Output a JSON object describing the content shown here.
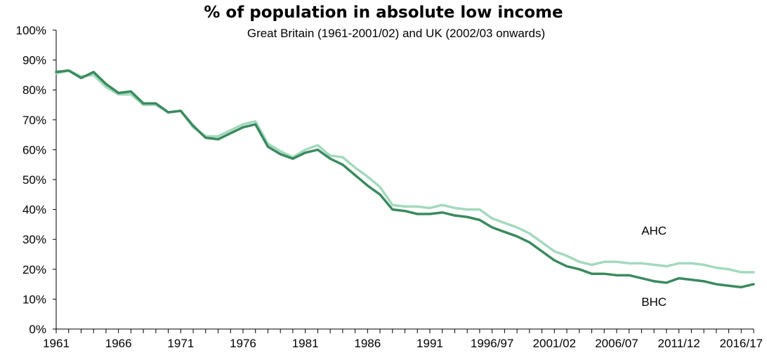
{
  "chart_data": {
    "type": "line",
    "title": "% of population in absolute low income",
    "subtitle": "Great Britain (1961-2001/02) and UK (2002/03 onwards)",
    "xlabel": "",
    "ylabel": "",
    "ylim": [
      0,
      100
    ],
    "y_ticks": [
      "0%",
      "10%",
      "20%",
      "30%",
      "40%",
      "50%",
      "60%",
      "70%",
      "80%",
      "90%",
      "100%"
    ],
    "x_tick_labels": [
      "1961",
      "1966",
      "1971",
      "1976",
      "1981",
      "1986",
      "1991",
      "1996/97",
      "2001/02",
      "2006/07",
      "2011/12",
      "2016/17"
    ],
    "x": [
      "1961",
      "1962",
      "1963",
      "1964",
      "1965",
      "1966",
      "1967",
      "1968",
      "1969",
      "1970",
      "1971",
      "1972",
      "1973",
      "1974",
      "1975",
      "1976",
      "1977",
      "1978",
      "1979",
      "1980",
      "1981",
      "1982",
      "1983",
      "1984",
      "1985",
      "1986",
      "1987",
      "1988",
      "1989",
      "1990",
      "1991",
      "1992",
      "1993/94",
      "1994/95",
      "1995/96",
      "1996/97",
      "1997/98",
      "1998/99",
      "1999/00",
      "2000/01",
      "2001/02",
      "2002/03",
      "2003/04",
      "2004/05",
      "2005/06",
      "2006/07",
      "2007/08",
      "2008/09",
      "2009/10",
      "2010/11",
      "2011/12",
      "2012/13",
      "2013/14",
      "2014/15",
      "2015/16",
      "2016/17",
      "2017/18"
    ],
    "series": [
      {
        "name": "AHC",
        "color": "#a3d9bd",
        "values": [
          85.5,
          86.5,
          84.5,
          85.0,
          81.0,
          78.5,
          78.5,
          75.0,
          75.0,
          72.5,
          73.0,
          67.5,
          64.5,
          64.5,
          66.5,
          68.5,
          69.5,
          62.0,
          59.5,
          57.5,
          60.0,
          61.5,
          58.0,
          57.5,
          54.0,
          51.0,
          47.5,
          41.5,
          41.0,
          41.0,
          40.5,
          41.5,
          40.5,
          40.0,
          40.0,
          37.0,
          35.5,
          34.0,
          32.0,
          29.0,
          26.0,
          24.5,
          22.5,
          21.5,
          22.5,
          22.5,
          22.0,
          22.0,
          21.5,
          21.0,
          22.0,
          22.0,
          21.5,
          20.5,
          20.0,
          19.0,
          19.0
        ]
      },
      {
        "name": "BHC",
        "color": "#3a8a5e",
        "values": [
          86.0,
          86.5,
          84.0,
          86.0,
          82.0,
          79.0,
          79.5,
          75.5,
          75.5,
          72.5,
          73.0,
          68.0,
          64.0,
          63.5,
          65.5,
          67.5,
          68.5,
          61.0,
          58.5,
          57.0,
          59.0,
          60.0,
          57.0,
          55.0,
          51.5,
          48.0,
          45.0,
          40.0,
          39.5,
          38.5,
          38.5,
          39.0,
          38.0,
          37.5,
          36.5,
          34.0,
          32.5,
          31.0,
          29.0,
          26.0,
          23.0,
          21.0,
          20.0,
          18.5,
          18.5,
          18.0,
          18.0,
          17.0,
          16.0,
          15.5,
          17.0,
          16.5,
          16.0,
          15.0,
          14.5,
          14.0,
          15.0
        ]
      }
    ],
    "grid": false,
    "legend": "inline labels"
  }
}
